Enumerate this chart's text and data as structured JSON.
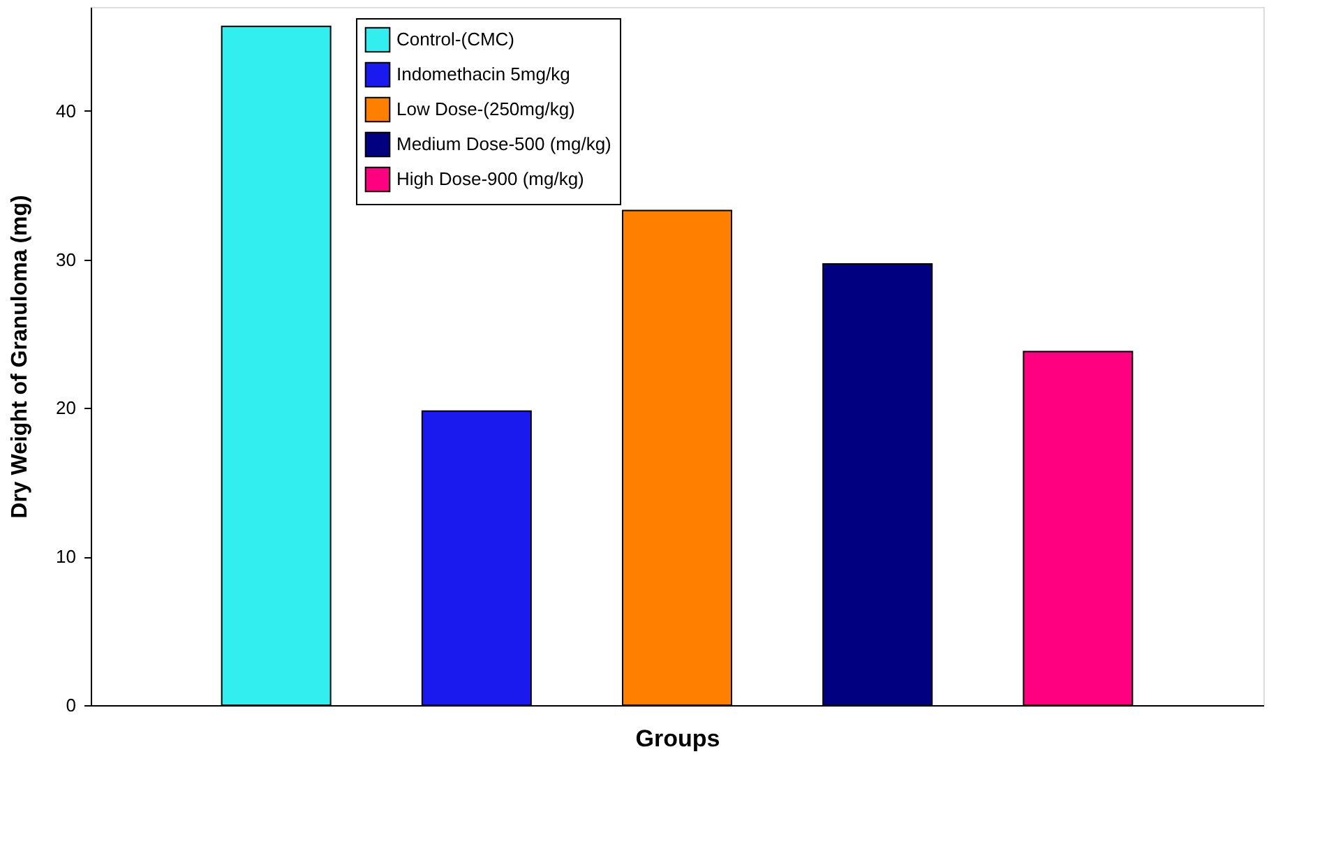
{
  "chart_data": {
    "type": "bar",
    "xlabel": "Groups",
    "ylabel": "Dry Weight of Granuloma (mg)",
    "categories": [
      null,
      null,
      null,
      null,
      null
    ],
    "series": [
      {
        "name": "Control-(CMC)",
        "color": "#33eeee",
        "values": [
          45.7,
          null,
          null,
          null,
          null
        ]
      },
      {
        "name": "Indomethacin 5mg/kg",
        "color": "#1a1aee",
        "values": [
          null,
          19.8,
          null,
          null,
          null
        ]
      },
      {
        "name": "Low Dose-(250mg/kg)",
        "color": "#ff8000",
        "values": [
          null,
          null,
          33.3,
          null,
          null
        ]
      },
      {
        "name": "Medium Dose-500 (mg/kg)",
        "color": "#000080",
        "values": [
          null,
          null,
          null,
          29.7,
          null
        ]
      },
      {
        "name": "High Dose-900 (mg/kg)",
        "color": "#ff0080",
        "values": [
          null,
          null,
          null,
          null,
          23.8
        ]
      }
    ],
    "ylim": [
      0,
      47
    ],
    "yticks": [
      0,
      10,
      20,
      30,
      40
    ],
    "grid": false,
    "legend": "top"
  }
}
